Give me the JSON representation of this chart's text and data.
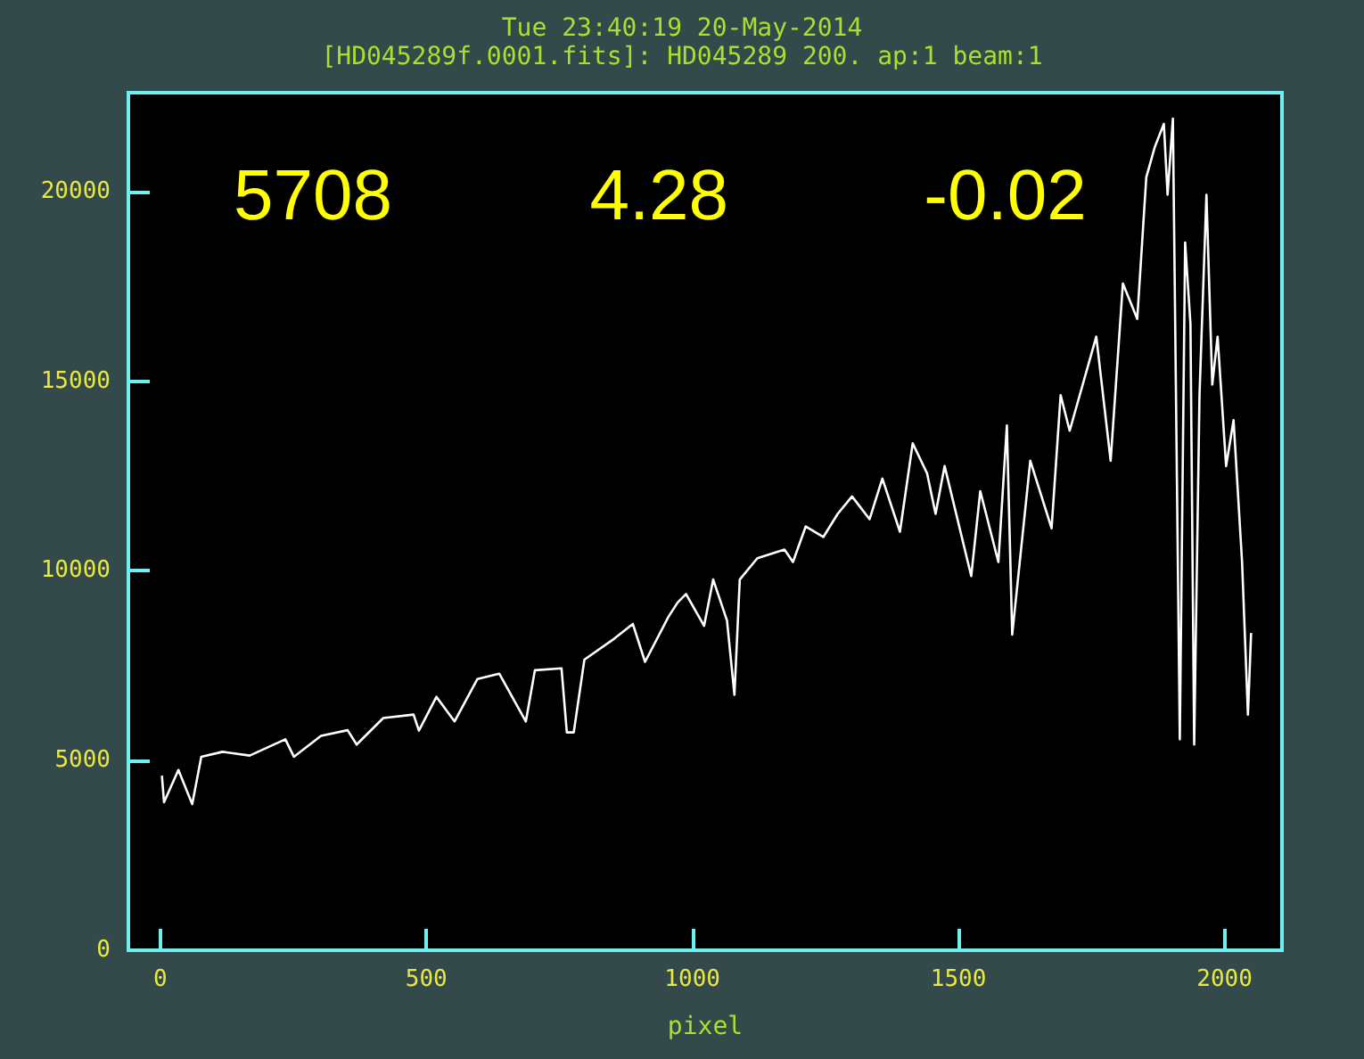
{
  "chart_data": {
    "type": "line",
    "title": "Tue 23:40:19 20-May-2014",
    "subtitle": "[HD045289f.0001.fits]: HD045289 200. ap:1 beam:1",
    "xlabel": "pixel",
    "annotations": [
      "5708",
      "4.28",
      "-0.02"
    ],
    "x": [
      3,
      7,
      34,
      60,
      77,
      117,
      168,
      235,
      251,
      302,
      352,
      369,
      419,
      476,
      486,
      519,
      553,
      596,
      637,
      687,
      704,
      754,
      764,
      777,
      797,
      854,
      888,
      911,
      955,
      972,
      988,
      1022,
      1039,
      1065,
      1079,
      1089,
      1122,
      1173,
      1189,
      1213,
      1246,
      1273,
      1300,
      1333,
      1357,
      1390,
      1414,
      1441,
      1457,
      1474,
      1524,
      1541,
      1575,
      1591,
      1601,
      1635,
      1675,
      1692,
      1709,
      1759,
      1786,
      1809,
      1836,
      1853,
      1869,
      1886,
      1893,
      1903,
      1916,
      1926,
      1936,
      1943,
      1953,
      1966,
      1977,
      1987,
      2003,
      2017,
      2033,
      2044,
      2050
    ],
    "series": [
      {
        "color": "#ffffff",
        "values": [
          4600,
          3900,
          4750,
          3850,
          5100,
          5230,
          5130,
          5560,
          5100,
          5650,
          5800,
          5420,
          6120,
          6210,
          5790,
          6680,
          6030,
          7150,
          7290,
          6030,
          7380,
          7430,
          5740,
          5740,
          7660,
          8220,
          8600,
          7600,
          8790,
          9160,
          9390,
          8550,
          9770,
          8690,
          6730,
          9770,
          10330,
          10560,
          10230,
          11170,
          10890,
          11500,
          11960,
          11360,
          12430,
          11030,
          13360,
          12570,
          11500,
          12760,
          9860,
          12100,
          10230,
          13830,
          8320,
          12900,
          11120,
          14630,
          13690,
          16170,
          12900,
          17570,
          16640,
          20370,
          21170,
          21780,
          19910,
          21920,
          5560,
          18650,
          16500,
          5420,
          14630,
          19910,
          14910,
          16170,
          12760,
          13970,
          10230,
          6210,
          8360
        ]
      }
    ],
    "xlim": [
      -60,
      2108
    ],
    "ylim": [
      0,
      22600
    ],
    "xticks": [
      0,
      500,
      1000,
      1500,
      2000
    ],
    "yticks": [
      0,
      5000,
      10000,
      15000,
      20000
    ],
    "grid": false,
    "marker": "none",
    "line_style": "solid"
  }
}
